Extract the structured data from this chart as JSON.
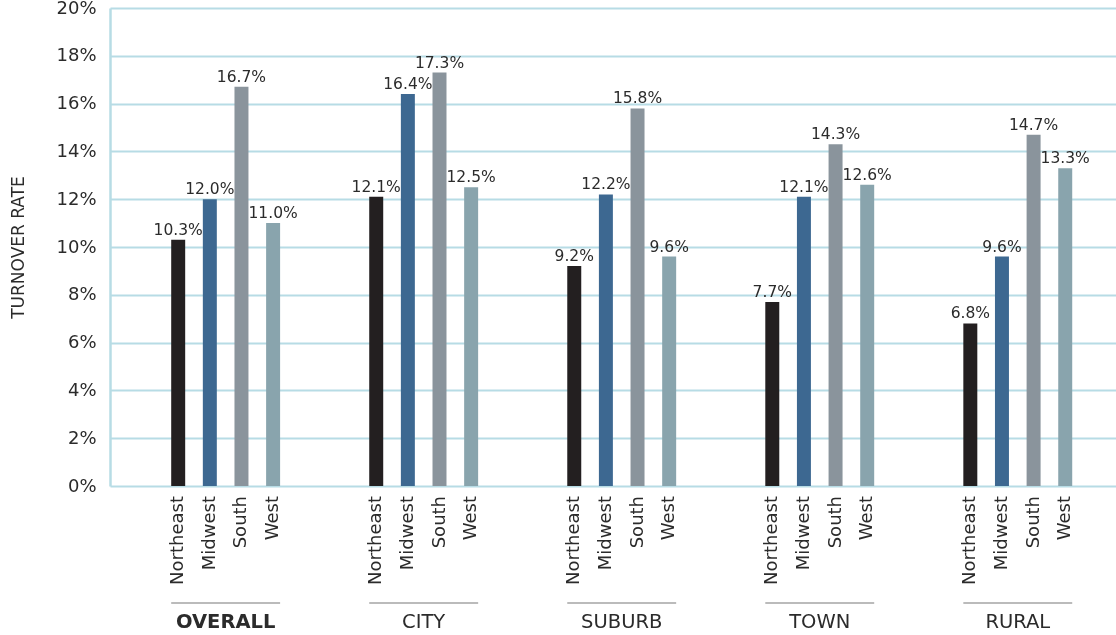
{
  "chart_data": {
    "type": "bar",
    "categories": [
      "OVERALL",
      "CITY",
      "SUBURB",
      "TOWN",
      "RURAL"
    ],
    "ylabel": "TURNOVER RATE",
    "ylim": [
      0,
      20
    ],
    "yticks": [
      {
        "value": 0,
        "label": "0%"
      },
      {
        "value": 2,
        "label": "2%"
      },
      {
        "value": 4,
        "label": "4%"
      },
      {
        "value": 6,
        "label": "6%"
      },
      {
        "value": 8,
        "label": "8%"
      },
      {
        "value": 10,
        "label": "10%"
      },
      {
        "value": 12,
        "label": "12%"
      },
      {
        "value": 14,
        "label": "14%"
      },
      {
        "value": 16,
        "label": "16%"
      },
      {
        "value": 18,
        "label": "18%"
      },
      {
        "value": 20,
        "label": "20%"
      }
    ],
    "grid": "y",
    "series": [
      {
        "name": "Northeast",
        "color": "#231f20",
        "values": [
          10.3,
          12.1,
          9.2,
          7.7,
          6.8
        ],
        "value_labels": [
          "10.3%",
          "12.1%",
          "9.2%",
          "7.7%",
          "6.8%"
        ]
      },
      {
        "name": "Midwest",
        "color": "#3d6891",
        "values": [
          12.0,
          16.4,
          12.2,
          12.1,
          9.6
        ],
        "value_labels": [
          "12.0%",
          "16.4%",
          "12.2%",
          "12.1%",
          "9.6%"
        ]
      },
      {
        "name": "South",
        "color": "#8a949c",
        "values": [
          16.7,
          17.3,
          15.8,
          14.3,
          14.7
        ],
        "value_labels": [
          "16.7%",
          "17.3%",
          "15.8%",
          "14.3%",
          "14.7%"
        ]
      },
      {
        "name": "West",
        "color": "#89a4ad",
        "values": [
          11.0,
          12.5,
          9.6,
          12.6,
          13.3
        ],
        "value_labels": [
          "11.0%",
          "12.5%",
          "9.6%",
          "12.6%",
          "13.3%"
        ]
      }
    ]
  }
}
